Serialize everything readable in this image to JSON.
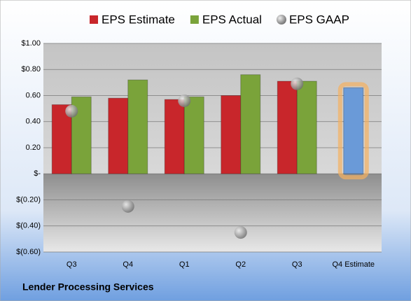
{
  "chart_data": {
    "type": "bar",
    "categories": [
      "Q3",
      "Q4",
      "Q1",
      "Q2",
      "Q3",
      "Q4 Estimate"
    ],
    "series": [
      {
        "name": "EPS Estimate",
        "color": "#c8262b",
        "colors": [
          "#c8262b",
          "#c8262b",
          "#c8262b",
          "#c8262b",
          "#c8262b",
          "#6a9ad8"
        ],
        "values": [
          0.53,
          0.58,
          0.57,
          0.6,
          0.71,
          0.66
        ]
      },
      {
        "name": "EPS Actual",
        "color": "#7aa33a",
        "values": [
          0.59,
          0.72,
          0.59,
          0.76,
          0.71,
          null
        ]
      },
      {
        "name": "EPS GAAP",
        "type": "scatter",
        "color": "#9a9a9a",
        "values": [
          0.48,
          -0.25,
          0.56,
          -0.45,
          0.69,
          null
        ]
      }
    ],
    "ylim": [
      -0.6,
      1.0
    ],
    "yticks": [
      {
        "value": -0.6,
        "label": "$(0.60)"
      },
      {
        "value": -0.4,
        "label": "$(0.40)"
      },
      {
        "value": -0.2,
        "label": "$(0.20)"
      },
      {
        "value": 0,
        "label": "$-"
      },
      {
        "value": 0.2,
        "label": "0.20"
      },
      {
        "value": 0.4,
        "label": "0.40"
      },
      {
        "value": 0.6,
        "label": "0.60"
      },
      {
        "value": 0.8,
        "label": "$0.80"
      },
      {
        "value": 1.0,
        "label": "$1.00"
      }
    ],
    "grid": true,
    "footer": "Lender Processing Services"
  }
}
